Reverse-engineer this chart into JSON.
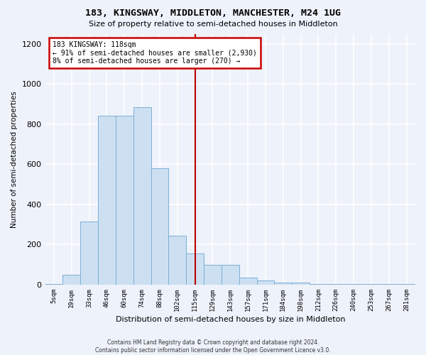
{
  "title": "183, KINGSWAY, MIDDLETON, MANCHESTER, M24 1UG",
  "subtitle": "Size of property relative to semi-detached houses in Middleton",
  "xlabel": "Distribution of semi-detached houses by size in Middleton",
  "ylabel": "Number of semi-detached properties",
  "bar_labels": [
    "5sqm",
    "19sqm",
    "33sqm",
    "46sqm",
    "60sqm",
    "74sqm",
    "88sqm",
    "102sqm",
    "115sqm",
    "129sqm",
    "143sqm",
    "157sqm",
    "171sqm",
    "184sqm",
    "198sqm",
    "212sqm",
    "226sqm",
    "240sqm",
    "253sqm",
    "267sqm",
    "281sqm"
  ],
  "bar_heights": [
    5,
    50,
    315,
    840,
    840,
    885,
    580,
    245,
    155,
    100,
    100,
    35,
    20,
    10,
    10,
    5,
    5,
    2,
    2,
    2,
    2
  ],
  "bar_color": "#cde0f2",
  "bar_edge_color": "#7aafd4",
  "vline_color": "#bb0000",
  "vline_x": 8.0,
  "annotation_title": "183 KINGSWAY: 118sqm",
  "annotation_line1": "← 91% of semi-detached houses are smaller (2,930)",
  "annotation_line2": "8% of semi-detached houses are larger (270) →",
  "ylim": [
    0,
    1250
  ],
  "yticks": [
    0,
    200,
    400,
    600,
    800,
    1000,
    1200
  ],
  "footer_line1": "Contains HM Land Registry data © Crown copyright and database right 2024.",
  "footer_line2": "Contains public sector information licensed under the Open Government Licence v3.0.",
  "bg_color": "#eef2fa",
  "grid_color": "#ffffff",
  "annotation_box_color": "#ffffff",
  "annotation_box_edge": "#cc0000"
}
